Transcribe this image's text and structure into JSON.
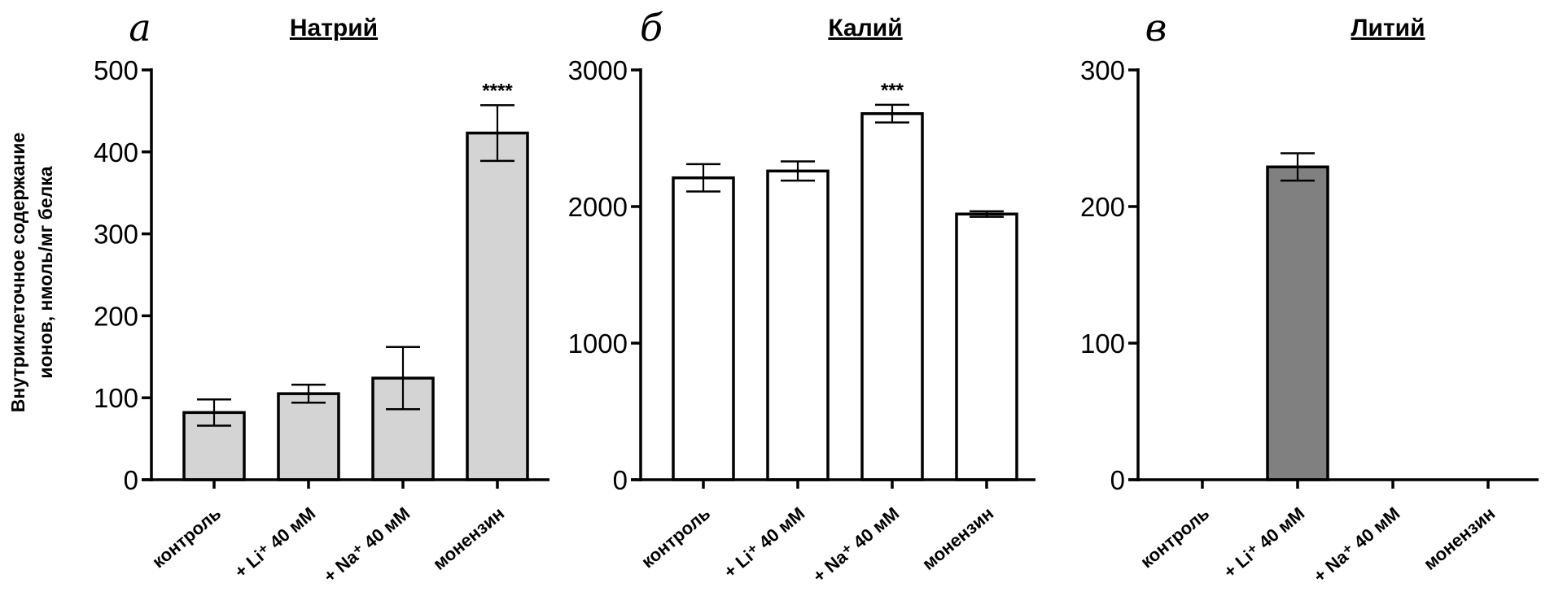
{
  "chart_data": [
    {
      "type": "bar",
      "panel_letter": "а",
      "title": "Натрий",
      "ylabel": [
        "Внутриклеточное содержание",
        "ионов, нмоль/мг белка"
      ],
      "categories": [
        "контроль",
        "+ Li⁺ 40 мМ",
        "+ Na⁺ 40 мМ",
        "монензин"
      ],
      "values": [
        82,
        105,
        124,
        423
      ],
      "errors": [
        16,
        11,
        38,
        34
      ],
      "annotations": [
        "",
        "",
        "",
        "****"
      ],
      "yticks": [
        0,
        100,
        200,
        300,
        400,
        500
      ],
      "ylim": [
        0,
        500
      ],
      "bar_color": "#d4d4d4"
    },
    {
      "type": "bar",
      "panel_letter": "б",
      "title": "Калий",
      "categories": [
        "контроль",
        "+ Li⁺ 40 мМ",
        "+ Na⁺ 40 мМ",
        "монензин"
      ],
      "values": [
        2210,
        2260,
        2680,
        1945
      ],
      "errors": [
        100,
        70,
        65,
        20
      ],
      "annotations": [
        "",
        "",
        "***",
        ""
      ],
      "yticks": [
        0,
        1000,
        2000,
        3000
      ],
      "ylim": [
        0,
        3000
      ],
      "bar_color": "#ffffff"
    },
    {
      "type": "bar",
      "panel_letter": "в",
      "title": "Литий",
      "categories": [
        "контроль",
        "+ Li⁺ 40 мМ",
        "+ Na⁺ 40 мМ",
        "монензин"
      ],
      "values": [
        0,
        229,
        0,
        0
      ],
      "errors": [
        0,
        10,
        0,
        0
      ],
      "annotations": [
        "",
        "",
        "",
        ""
      ],
      "yticks": [
        0,
        100,
        200,
        300
      ],
      "ylim": [
        0,
        300
      ],
      "bar_color": "#808080"
    }
  ]
}
